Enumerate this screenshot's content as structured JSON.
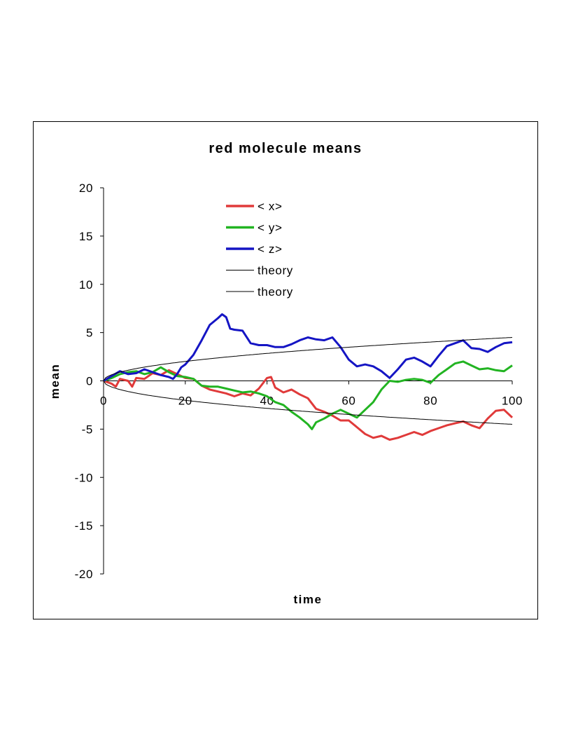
{
  "chart_data": {
    "type": "line",
    "title": "red molecule means",
    "xlabel": "time",
    "ylabel": "mean",
    "xlim": [
      0,
      100
    ],
    "ylim": [
      -20,
      20
    ],
    "xticks": [
      "0",
      "20",
      "40",
      "60",
      "80",
      "100"
    ],
    "yticks": [
      "20",
      "15",
      "10",
      "5",
      "0",
      "-5",
      "-10",
      "-15",
      "-20"
    ],
    "grid": false,
    "legend_position": "top-center",
    "series": [
      {
        "name": "< x>",
        "color": "#e03a3a",
        "x": [
          0,
          2,
          3,
          4,
          6,
          7,
          8,
          10,
          12,
          14,
          16,
          18,
          20,
          22,
          24,
          26,
          28,
          30,
          32,
          34,
          36,
          38,
          40,
          41,
          42,
          44,
          46,
          48,
          50,
          52,
          54,
          56,
          58,
          60,
          62,
          64,
          66,
          68,
          70,
          72,
          74,
          76,
          78,
          80,
          82,
          84,
          86,
          88,
          90,
          92,
          94,
          96,
          98,
          100
        ],
        "y": [
          0,
          -0.3,
          -0.6,
          0.2,
          0,
          -0.6,
          0.3,
          0.2,
          0.8,
          0.6,
          1.1,
          0.7,
          0.3,
          0.2,
          -0.5,
          -0.9,
          -1.1,
          -1.3,
          -1.6,
          -1.3,
          -1.5,
          -0.8,
          0.3,
          0.4,
          -0.7,
          -1.2,
          -0.9,
          -1.4,
          -1.8,
          -2.9,
          -3.2,
          -3.6,
          -4.1,
          -4.1,
          -4.8,
          -5.5,
          -5.9,
          -5.7,
          -6.1,
          -5.9,
          -5.6,
          -5.3,
          -5.6,
          -5.2,
          -4.9,
          -4.6,
          -4.4,
          -4.2,
          -4.6,
          -4.9,
          -3.9,
          -3.1,
          -3.0,
          -3.8
        ]
      },
      {
        "name": "< y>",
        "color": "#22b422",
        "x": [
          0,
          2,
          4,
          6,
          8,
          10,
          12,
          14,
          16,
          18,
          20,
          22,
          24,
          26,
          28,
          30,
          32,
          34,
          36,
          38,
          40,
          42,
          44,
          46,
          48,
          50,
          51,
          52,
          54,
          56,
          58,
          60,
          62,
          64,
          66,
          68,
          70,
          72,
          74,
          76,
          78,
          80,
          82,
          84,
          86,
          88,
          90,
          92,
          94,
          96,
          98,
          100
        ],
        "y": [
          0,
          0.3,
          0.7,
          0.9,
          1.0,
          0.7,
          0.9,
          1.4,
          0.9,
          0.5,
          0.4,
          0.2,
          -0.5,
          -0.6,
          -0.6,
          -0.8,
          -1.0,
          -1.2,
          -1.1,
          -1.3,
          -1.6,
          -2.2,
          -2.5,
          -3.2,
          -3.8,
          -4.5,
          -5.0,
          -4.3,
          -3.9,
          -3.4,
          -3.0,
          -3.4,
          -3.8,
          -3.0,
          -2.2,
          -0.9,
          0,
          -0.1,
          0.1,
          0.2,
          0.1,
          -0.2,
          0.6,
          1.2,
          1.8,
          2.0,
          1.6,
          1.2,
          1.3,
          1.1,
          1.0,
          1.6
        ]
      },
      {
        "name": "< z>",
        "color": "#1515c4",
        "x": [
          0,
          2,
          4,
          6,
          8,
          10,
          12,
          14,
          16,
          17,
          18,
          19,
          20,
          22,
          24,
          26,
          28,
          29,
          30,
          31,
          32,
          34,
          36,
          38,
          40,
          42,
          44,
          46,
          48,
          50,
          52,
          54,
          56,
          58,
          60,
          62,
          64,
          66,
          68,
          70,
          72,
          74,
          76,
          78,
          80,
          82,
          84,
          86,
          88,
          90,
          92,
          94,
          96,
          98,
          100
        ],
        "y": [
          0,
          0.5,
          1.0,
          0.7,
          0.8,
          1.2,
          0.9,
          0.6,
          0.4,
          0.2,
          0.7,
          1.4,
          1.7,
          2.7,
          4.2,
          5.8,
          6.5,
          6.9,
          6.6,
          5.4,
          5.3,
          5.2,
          3.9,
          3.7,
          3.7,
          3.5,
          3.5,
          3.8,
          4.2,
          4.5,
          4.3,
          4.2,
          4.5,
          3.5,
          2.2,
          1.5,
          1.7,
          1.5,
          1.0,
          0.3,
          1.2,
          2.2,
          2.4,
          2.0,
          1.5,
          2.6,
          3.6,
          3.9,
          4.2,
          3.4,
          3.3,
          3.0,
          3.5,
          3.9,
          4.0
        ]
      },
      {
        "name": "theory",
        "color": "#000000",
        "formula": "0.45*sqrt(t)"
      },
      {
        "name": "theory",
        "color": "#000000",
        "formula": "-0.45*sqrt(t)"
      }
    ]
  }
}
